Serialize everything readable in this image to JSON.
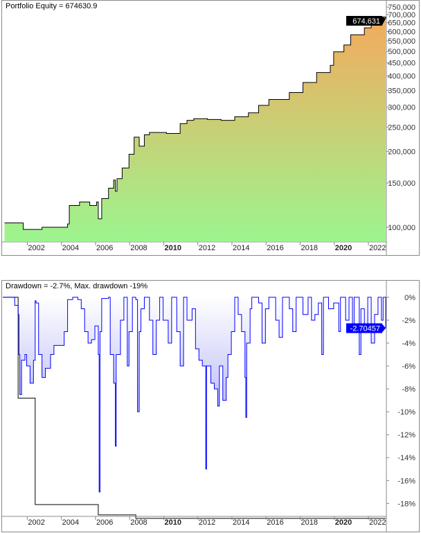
{
  "chart_data": [
    {
      "type": "area",
      "title": "Portfolio Equity = 674630.9",
      "y_scale": "log",
      "ylim": [
        88000,
        770000
      ],
      "xlim": [
        2000.4,
        2022.85
      ],
      "yticks": [
        100000,
        150000,
        200000,
        250000,
        300000,
        350000,
        400000,
        450000,
        500000,
        550000,
        600000,
        650000,
        700000,
        750000
      ],
      "ytick_labels": [
        "100,000",
        "150,000",
        "200,000",
        "250,000",
        "300,000",
        "350,000",
        "400,000",
        "450,000",
        "500,000",
        "550,000",
        "600,000",
        "650,000",
        "700,000",
        "750,000"
      ],
      "xticks": [
        2002,
        2004,
        2006,
        2008,
        2010,
        2012,
        2014,
        2016,
        2018,
        2020,
        2022
      ],
      "xtick_labels": [
        "2002",
        "2004",
        "2006",
        "2008",
        "2010",
        "2012",
        "2014",
        "2016",
        "2018",
        "2020",
        "2022"
      ],
      "bold_xticks": [
        "2010",
        "2020"
      ],
      "last_value_label": "674,631",
      "colors": {
        "fill_top": "#f4aa5c",
        "fill_bottom": "#9cf58f",
        "line": "#000000"
      },
      "x": [
        2000.5,
        2001.5,
        2001.6,
        2002.7,
        2004.2,
        2004.3,
        2004.9,
        2005.5,
        2005.9,
        2006.0,
        2006.2,
        2006.6,
        2006.9,
        2007.0,
        2007.1,
        2007.4,
        2007.8,
        2008.1,
        2008.4,
        2008.7,
        2009.0,
        2010.0,
        2010.8,
        2011.2,
        2011.6,
        2012.4,
        2013.2,
        2014.0,
        2014.8,
        2015.4,
        2016.0,
        2017.2,
        2018.0,
        2018.8,
        2019.6,
        2019.8,
        2020.4,
        2020.8,
        2021.6,
        2022.0,
        2022.45,
        2022.85
      ],
      "y": [
        104000,
        104000,
        98000,
        100000,
        103000,
        122000,
        126000,
        122000,
        126000,
        108000,
        130000,
        143000,
        154000,
        139000,
        156000,
        172000,
        195000,
        228000,
        210000,
        233000,
        238000,
        236000,
        258000,
        266000,
        270000,
        268000,
        266000,
        275000,
        285000,
        305000,
        322000,
        343000,
        376000,
        412000,
        440000,
        498000,
        530000,
        582000,
        620000,
        645000,
        685000,
        674631
      ]
    },
    {
      "type": "line",
      "title": "Drawdown = -2.7%, Max. drawdown -19%",
      "ylim": [
        -20.4,
        0.6
      ],
      "xlim": [
        2000.4,
        2022.85
      ],
      "yticks": [
        0,
        -2,
        -4,
        -6,
        -8,
        -10,
        -12,
        -14,
        -16,
        -18
      ],
      "ytick_labels": [
        "0%",
        "-2%",
        "-4%",
        "-6%",
        "-8%",
        "-10%",
        "-12%",
        "-14%",
        "-16%",
        "-18%"
      ],
      "xticks": [
        2002,
        2004,
        2006,
        2008,
        2010,
        2012,
        2014,
        2016,
        2018,
        2020,
        2022
      ],
      "xtick_labels": [
        "2002",
        "2004",
        "2006",
        "2008",
        "2010",
        "2012",
        "2014",
        "2016",
        "2018",
        "2020",
        "2022"
      ],
      "bold_xticks": [
        "2010",
        "2020"
      ],
      "last_value_label": "-2.70457",
      "colors": {
        "line": "#0000ff",
        "fill_bottom": "#8a8af0",
        "max_line": "#000000"
      },
      "x": [
        2000.4,
        2001.0,
        2001.1,
        2001.3,
        2001.35,
        2001.4,
        2001.5,
        2001.7,
        2001.8,
        2002.0,
        2002.2,
        2002.3,
        2002.35,
        2002.5,
        2002.7,
        2002.9,
        2003.2,
        2003.4,
        2003.9,
        2004.0,
        2004.2,
        2004.5,
        2004.8,
        2005.0,
        2005.2,
        2005.4,
        2005.6,
        2005.8,
        2006.0,
        2006.05,
        2006.1,
        2006.2,
        2006.6,
        2006.7,
        2006.9,
        2007.0,
        2007.05,
        2007.3,
        2007.5,
        2007.7,
        2007.8,
        2008.0,
        2008.2,
        2008.3,
        2008.4,
        2008.5,
        2008.7,
        2009.0,
        2009.2,
        2009.4,
        2009.6,
        2009.8,
        2010.1,
        2010.3,
        2010.6,
        2010.8,
        2011.0,
        2011.2,
        2011.5,
        2011.7,
        2011.9,
        2012.1,
        2012.3,
        2012.35,
        2012.6,
        2012.8,
        2013.0,
        2013.1,
        2013.3,
        2013.5,
        2013.6,
        2013.8,
        2014.0,
        2014.2,
        2014.4,
        2014.6,
        2014.65,
        2014.7,
        2014.9,
        2015.0,
        2015.4,
        2015.6,
        2015.8,
        2016.0,
        2016.4,
        2016.6,
        2016.8,
        2017.2,
        2017.4,
        2017.6,
        2018.0,
        2018.3,
        2018.5,
        2018.7,
        2018.9,
        2019.1,
        2019.2,
        2019.5,
        2019.8,
        2020.1,
        2020.2,
        2020.5,
        2020.7,
        2020.9,
        2021.0,
        2021.3,
        2021.4,
        2021.6,
        2021.8,
        2022.0,
        2022.2,
        2022.4,
        2022.6,
        2022.7,
        2022.85
      ],
      "y": [
        0,
        0,
        -0.7,
        -1.5,
        -5,
        -8.5,
        -5.5,
        -5,
        -6,
        -7.5,
        -5.5,
        -0.3,
        -0.5,
        -5,
        -7,
        -6.2,
        -5,
        -4.2,
        -4.2,
        -3,
        -0.2,
        0,
        -0.2,
        -1,
        -3,
        -4,
        -3.7,
        -2.5,
        -5,
        -17,
        -3,
        -0.1,
        0,
        -5,
        -7.5,
        -13,
        -5,
        -2,
        0,
        -6,
        -3,
        0,
        -0.2,
        -10,
        -3,
        -1,
        0,
        -2,
        -5,
        -2,
        0,
        -2,
        -4,
        0,
        -3,
        -6,
        0,
        -2,
        -1,
        -4.5,
        -5.5,
        -6,
        -15,
        -6,
        -7.5,
        -8,
        -9.5,
        -6,
        -9,
        -7,
        -5,
        -3,
        0,
        -1.5,
        -3,
        -7,
        -10.5,
        -4,
        -1,
        0,
        -0.5,
        -4,
        -1,
        0,
        -2,
        -3.5,
        0,
        -1,
        -3,
        0,
        -1.5,
        0,
        -2,
        -1.5,
        -0.5,
        -5,
        0,
        -1,
        -0.5,
        -3,
        0,
        -2,
        0,
        -3,
        0,
        -5,
        -1,
        -2.5,
        0,
        -4,
        -1.5,
        0,
        -2,
        0,
        -2.7
      ],
      "max_drawdown": {
        "x": [
          2000.4,
          2001.3,
          2002.3,
          2006.0,
          2008.2,
          2022.85
        ],
        "y": [
          0,
          -8.8,
          -18.1,
          -19.0,
          -19.3,
          -19.3
        ]
      }
    }
  ]
}
